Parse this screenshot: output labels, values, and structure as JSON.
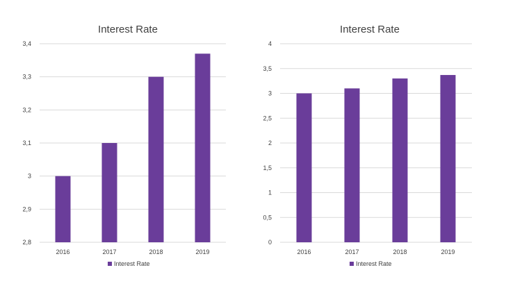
{
  "colors": {
    "bar": "#6A3D9A",
    "grid": "#D9D9D9",
    "text": "#404040"
  },
  "chart_data": [
    {
      "type": "bar",
      "title": "Interest Rate",
      "categories": [
        "2016",
        "2017",
        "2018",
        "2019"
      ],
      "series": [
        {
          "name": "Interest Rate",
          "values": [
            3.0,
            3.1,
            3.3,
            3.37
          ]
        }
      ],
      "ylim": [
        2.8,
        3.4
      ],
      "yticks": [
        "2,8",
        "2,9",
        "3",
        "3,1",
        "3,2",
        "3,3",
        "3,4"
      ],
      "grid": true,
      "legend": "bottom"
    },
    {
      "type": "bar",
      "title": "Interest Rate",
      "categories": [
        "2016",
        "2017",
        "2018",
        "2019"
      ],
      "series": [
        {
          "name": "Interest Rate",
          "values": [
            3.0,
            3.1,
            3.3,
            3.37
          ]
        }
      ],
      "ylim": [
        0,
        4
      ],
      "yticks": [
        "0",
        "0,5",
        "1",
        "1,5",
        "2",
        "2,5",
        "3",
        "3,5",
        "4"
      ],
      "grid": true,
      "legend": "bottom"
    }
  ]
}
